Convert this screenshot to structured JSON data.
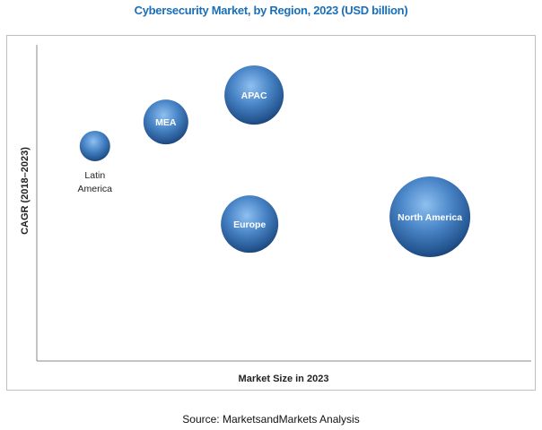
{
  "chart_data": {
    "type": "scatter",
    "subtype": "bubble",
    "title": "Cybersecurity Market, by Region, 2023 (USD billion)",
    "xlabel": "Market Size in 2023",
    "ylabel": "CAGR (2018–2023)",
    "xlim": [
      0,
      100
    ],
    "ylim": [
      0,
      100
    ],
    "grid": false,
    "note": "Axes carry no tick values; positions are relative",
    "points": [
      {
        "name": "Latin America",
        "x": 11.8,
        "y": 68,
        "size": 17,
        "label_position": "below"
      },
      {
        "name": "MEA",
        "x": 26.2,
        "y": 75.6,
        "size": 25,
        "label_position": "center"
      },
      {
        "name": "APAC",
        "x": 44.1,
        "y": 84.1,
        "size": 33,
        "label_position": "center"
      },
      {
        "name": "Europe",
        "x": 43.2,
        "y": 43.3,
        "size": 32,
        "label_position": "center"
      },
      {
        "name": "North America",
        "x": 79.8,
        "y": 45.6,
        "size": 45,
        "label_position": "center"
      }
    ],
    "colors": {
      "bubble": "#3a6fb0",
      "title": "#1a6fb8"
    }
  },
  "source": "Source: MarketsandMarkets Analysis"
}
